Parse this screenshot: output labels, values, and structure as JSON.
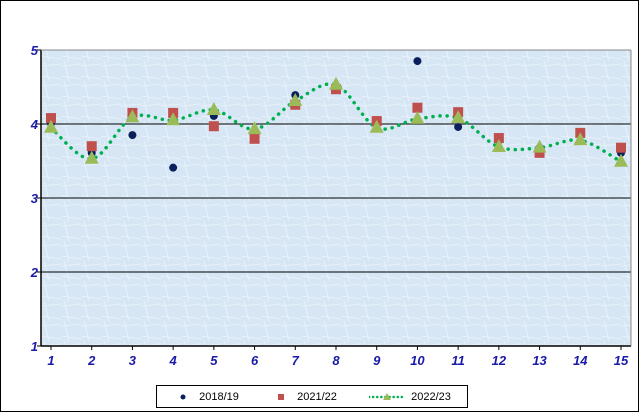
{
  "chart_data": {
    "type": "line",
    "title": "",
    "xlabel": "",
    "ylabel": "",
    "x": [
      1,
      2,
      3,
      4,
      5,
      6,
      7,
      8,
      9,
      10,
      11,
      12,
      13,
      14,
      15
    ],
    "ylim": [
      1,
      5
    ],
    "yticks": [
      "1",
      "2",
      "3",
      "4",
      "5"
    ],
    "xticks": [
      "1",
      "2",
      "3",
      "4",
      "5",
      "6",
      "7",
      "8",
      "9",
      "10",
      "11",
      "12",
      "13",
      "14",
      "15"
    ],
    "grid": "horizontal major",
    "legend": "bottom",
    "series": [
      {
        "name": "2018/19",
        "marker": "circle",
        "line": "none",
        "color": "#0a1f5c",
        "values": [
          4.01,
          3.61,
          3.85,
          3.41,
          4.11,
          3.89,
          4.39,
          4.47,
          4.0,
          4.85,
          3.96,
          3.78,
          3.68,
          3.77,
          3.61
        ]
      },
      {
        "name": "2021/22",
        "marker": "square",
        "line": "none",
        "color": "#c0504d",
        "values": [
          4.08,
          3.7,
          4.15,
          4.15,
          3.97,
          3.8,
          4.26,
          4.47,
          4.04,
          4.22,
          4.16,
          3.81,
          3.61,
          3.88,
          3.68
        ]
      },
      {
        "name": "2022/23",
        "marker": "triangle",
        "line": "dotted",
        "color": "#9bbb59",
        "line_color": "#00b050",
        "values": [
          3.95,
          3.53,
          4.09,
          4.05,
          4.19,
          3.93,
          4.31,
          4.53,
          3.95,
          4.07,
          4.08,
          3.69,
          3.68,
          3.78,
          3.49
        ]
      }
    ]
  }
}
